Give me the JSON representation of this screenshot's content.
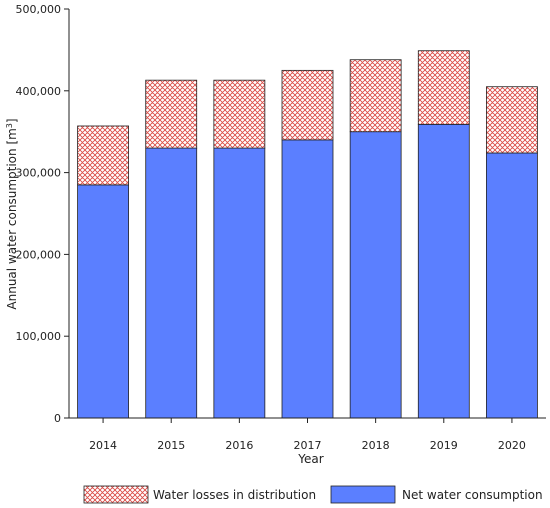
{
  "chart_data": {
    "type": "bar",
    "stacked": true,
    "categories": [
      "2014",
      "2015",
      "2016",
      "2017",
      "2018",
      "2019",
      "2020"
    ],
    "series": [
      {
        "name": "Net water consumption",
        "values": [
          285000,
          330000,
          330000,
          340000,
          350000,
          359000,
          324000
        ],
        "color": "#5b7fff",
        "pattern": "solid"
      },
      {
        "name": "Water losses in distribution",
        "values": [
          72000,
          83000,
          83000,
          85000,
          88000,
          90000,
          81000
        ],
        "color": "#e0504a",
        "pattern": "crosshatch"
      }
    ],
    "xlabel": "Year",
    "ylabel_main": "Annual water consumption [m",
    "ylabel_sup": "3",
    "ylabel_end": "]",
    "ylim": [
      0,
      500000
    ],
    "yticks": [
      "0",
      "100,000",
      "200,000",
      "300,000",
      "400,000",
      "500,000"
    ],
    "ytick_values": [
      0,
      100000,
      200000,
      300000,
      400000,
      500000
    ],
    "grid": false,
    "legend_position": "bottom",
    "legend_order": [
      "Water losses in distribution",
      "Net water consumption"
    ]
  }
}
